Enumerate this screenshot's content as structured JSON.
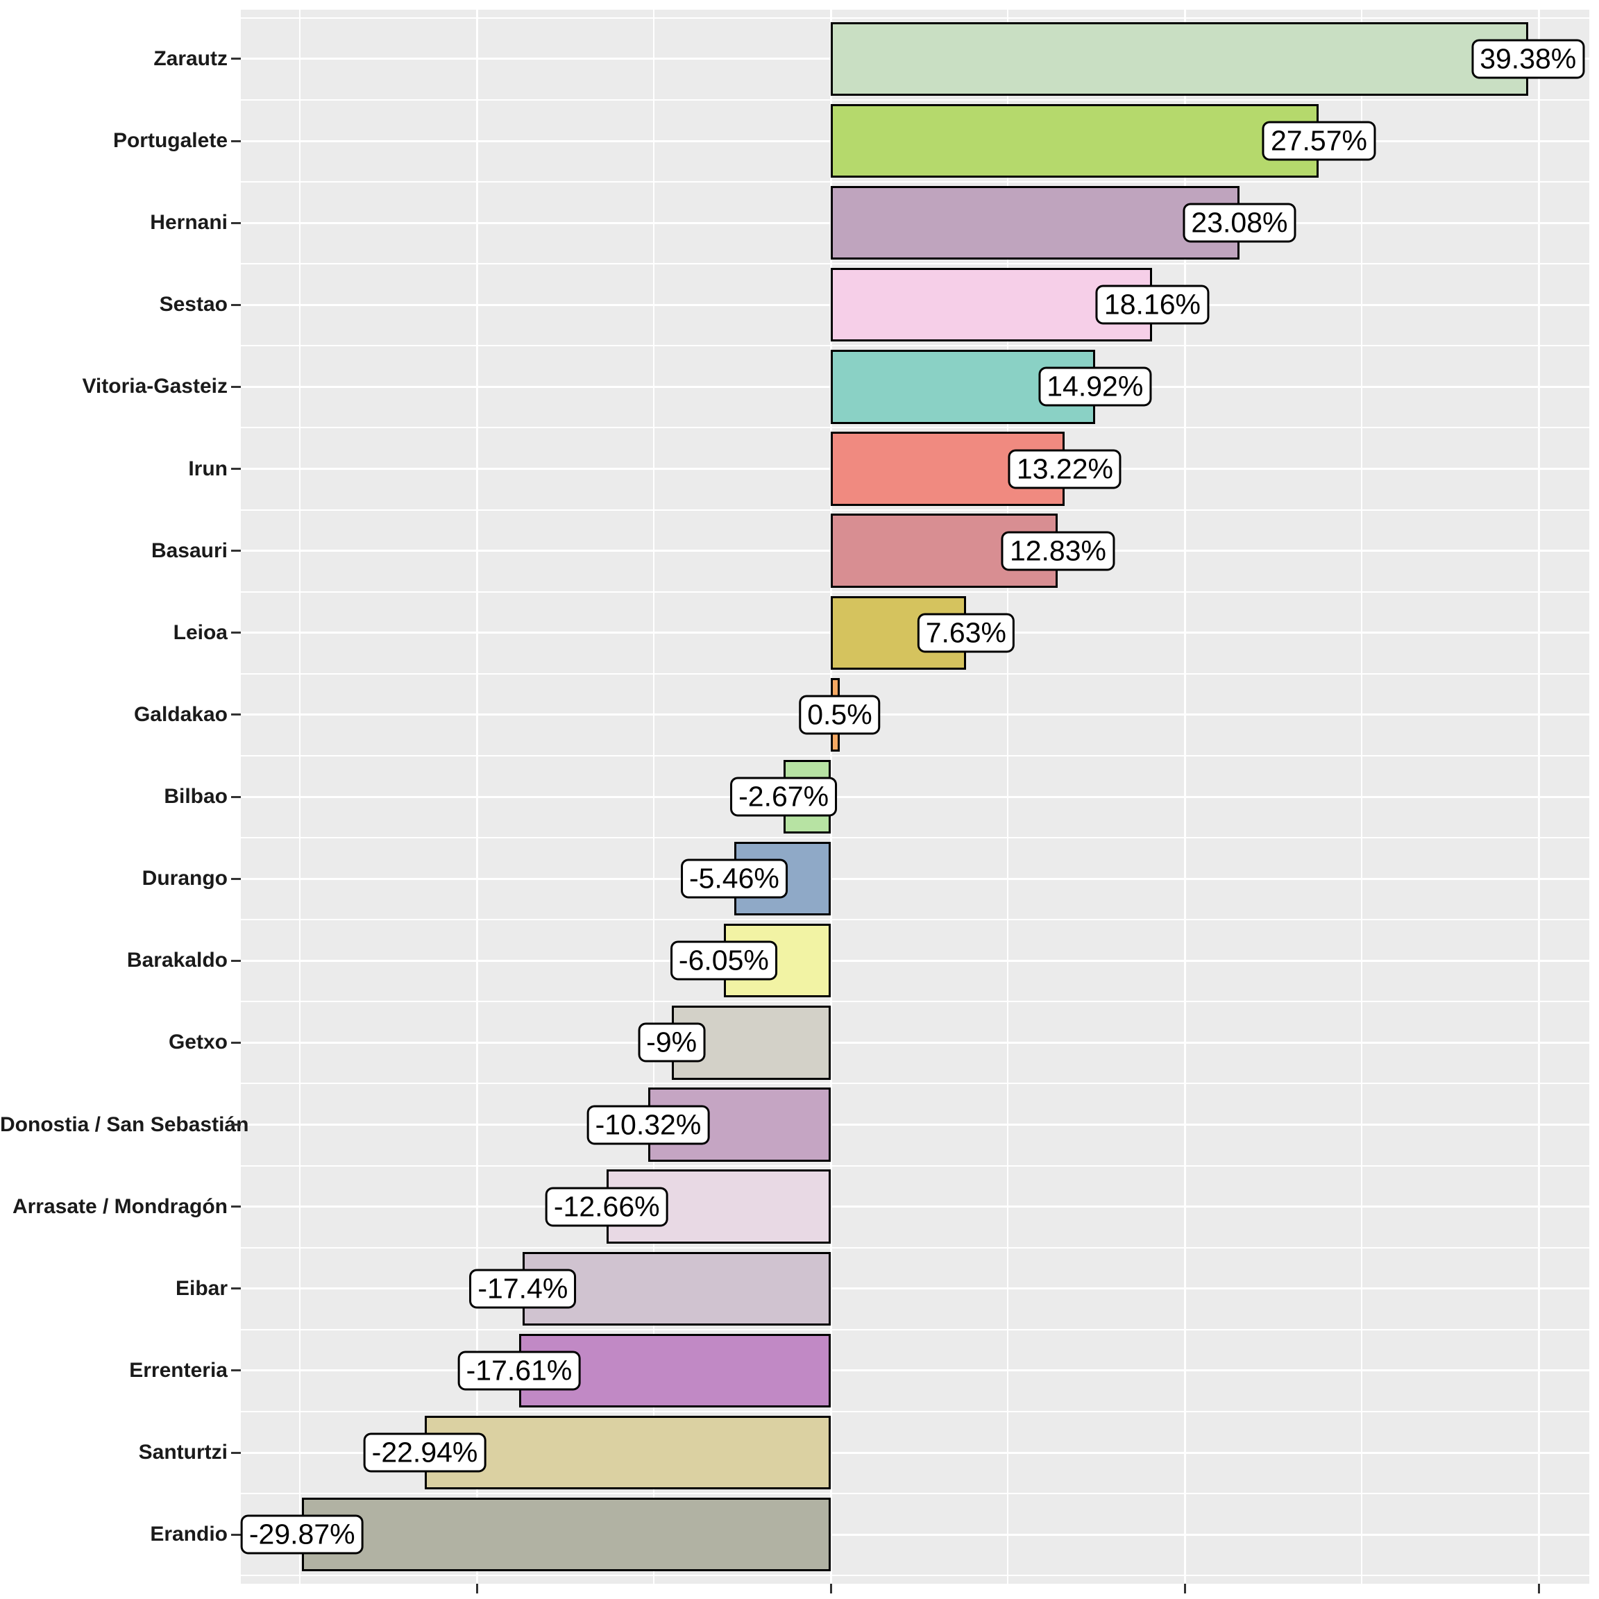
{
  "chart_data": {
    "type": "bar",
    "orientation": "horizontal",
    "title": "",
    "xlabel": "",
    "ylabel": "",
    "legend": "none",
    "grid": true,
    "xlim": [
      -33.33,
      42.84
    ],
    "x_major_ticks": [
      -20,
      0,
      20,
      40
    ],
    "x_minor_ticks": [
      -30,
      -10,
      10,
      30
    ],
    "x_tick_labels_visible": false,
    "panel_background": "#EBEBEB",
    "grid_color": "#FFFFFF",
    "bar_border_color": "#000000",
    "axis_tick_color": "#333333",
    "axis_text_color": "#1A1A1A",
    "label_box": {
      "fill": "#FFFFFF",
      "border": "#000000",
      "text_color": "#000000"
    },
    "categories": [
      "Zarautz",
      "Portugalete",
      "Hernani",
      "Sestao",
      "Vitoria-Gasteiz",
      "Irun",
      "Basauri",
      "Leioa",
      "Galdakao",
      "Bilbao",
      "Durango",
      "Barakaldo",
      "Getxo",
      "Donostia / San Sebastián",
      "Arrasate / Mondragón",
      "Eibar",
      "Errenteria",
      "Santurtzi",
      "Erandio"
    ],
    "values": [
      39.38,
      27.57,
      23.08,
      18.16,
      14.92,
      13.22,
      12.83,
      7.63,
      0.5,
      -2.67,
      -5.46,
      -6.05,
      -9,
      -10.32,
      -12.66,
      -17.4,
      -17.61,
      -22.94,
      -29.87
    ],
    "bars": [
      {
        "category": "Zarautz",
        "value": 39.38,
        "label": "39.38%",
        "color": "#C9DFC3"
      },
      {
        "category": "Portugalete",
        "value": 27.57,
        "label": "27.57%",
        "color": "#B5D96C"
      },
      {
        "category": "Hernani",
        "value": 23.08,
        "label": "23.08%",
        "color": "#BFA4BE"
      },
      {
        "category": "Sestao",
        "value": 18.16,
        "label": "18.16%",
        "color": "#F6CFE8"
      },
      {
        "category": "Vitoria-Gasteiz",
        "value": 14.92,
        "label": "14.92%",
        "color": "#8AD1C5"
      },
      {
        "category": "Irun",
        "value": 13.22,
        "label": "13.22%",
        "color": "#F08A80"
      },
      {
        "category": "Basauri",
        "value": 12.83,
        "label": "12.83%",
        "color": "#D88E92"
      },
      {
        "category": "Leioa",
        "value": 7.63,
        "label": "7.63%",
        "color": "#D5C35E"
      },
      {
        "category": "Galdakao",
        "value": 0.5,
        "label": "0.5%",
        "color": "#F5A963"
      },
      {
        "category": "Bilbao",
        "value": -2.67,
        "label": "-2.67%",
        "color": "#B7E3A3"
      },
      {
        "category": "Durango",
        "value": -5.46,
        "label": "-5.46%",
        "color": "#8FA9C7"
      },
      {
        "category": "Barakaldo",
        "value": -6.05,
        "label": "-6.05%",
        "color": "#F2F3A4"
      },
      {
        "category": "Getxo",
        "value": -9,
        "label": "-9%",
        "color": "#D3D1C8"
      },
      {
        "category": "Donostia / San Sebastián",
        "value": -10.32,
        "label": "-10.32%",
        "color": "#C5A5C3"
      },
      {
        "category": "Arrasate / Mondragón",
        "value": -12.66,
        "label": "-12.66%",
        "color": "#E8D9E4"
      },
      {
        "category": "Eibar",
        "value": -17.4,
        "label": "-17.4%",
        "color": "#D0C3D0"
      },
      {
        "category": "Errenteria",
        "value": -17.61,
        "label": "-17.61%",
        "color": "#C189C5"
      },
      {
        "category": "Santurtzi",
        "value": -22.94,
        "label": "-22.94%",
        "color": "#DBD1A2"
      },
      {
        "category": "Erandio",
        "value": -29.87,
        "label": "-29.87%",
        "color": "#B1B2A3"
      }
    ]
  }
}
